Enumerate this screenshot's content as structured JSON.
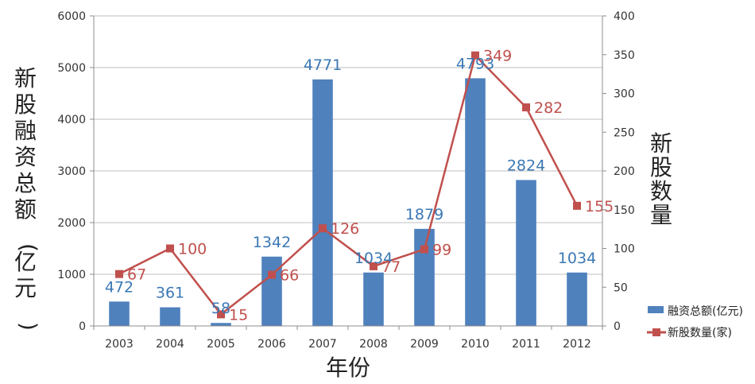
{
  "chart_data": {
    "type": "bar",
    "categories": [
      "2003",
      "2004",
      "2005",
      "2006",
      "2007",
      "2008",
      "2009",
      "2010",
      "2011",
      "2012"
    ],
    "xlabel": "年份",
    "ylabel_left": "新股融资总额(亿元)",
    "ylabel_right": "新股数量",
    "ylim_left": [
      0,
      6000
    ],
    "yticks_left": [
      "0",
      "1000",
      "2000",
      "3000",
      "4000",
      "5000",
      "6000"
    ],
    "ylim_right": [
      0,
      400
    ],
    "yticks_right": [
      "0",
      "50",
      "100",
      "150",
      "200",
      "250",
      "300",
      "350",
      "400"
    ],
    "grid": true,
    "legend_position": "bottom-right",
    "series": [
      {
        "name": "融资总额(亿元)",
        "type": "bar",
        "axis": "left",
        "color": "#4f81bd",
        "values": [
          472,
          361,
          58,
          1342,
          4771,
          1034,
          1879,
          4793,
          2824,
          1034
        ],
        "labels": [
          "472",
          "361",
          "58",
          "1342",
          "4771",
          "1034",
          "1879",
          "4793",
          "2824",
          "1034"
        ]
      },
      {
        "name": "新股数量(家)",
        "type": "line",
        "axis": "right",
        "color": "#c0504d",
        "values": [
          67,
          100,
          15,
          66,
          126,
          77,
          99,
          349,
          282,
          155
        ],
        "labels": [
          "67",
          "100",
          "15",
          "66",
          "126",
          "77",
          "99",
          "349",
          "282",
          "155"
        ]
      }
    ]
  }
}
